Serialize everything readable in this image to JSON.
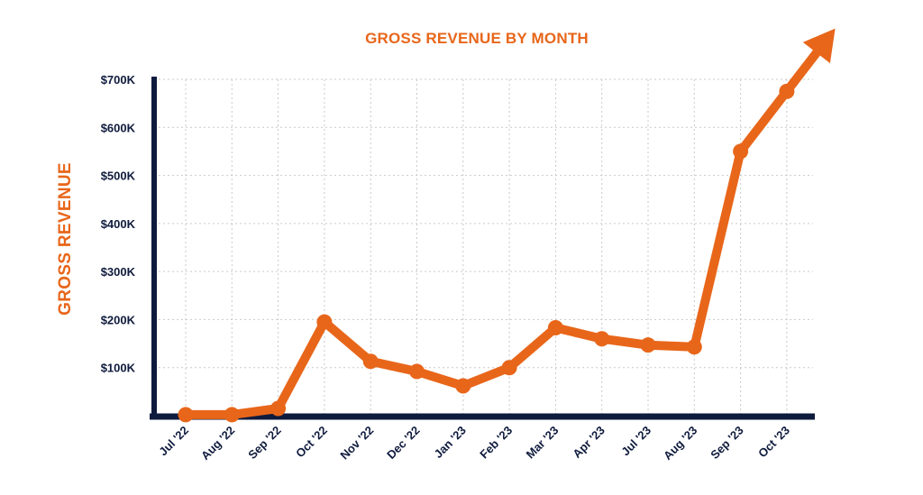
{
  "colors": {
    "accent": "#E8661A",
    "axis": "#0F1B3D",
    "grid": "#C9C9C9",
    "background": "#FFFFFF"
  },
  "chart_data": {
    "type": "line",
    "title": "GROSS REVENUE BY MONTH",
    "xlabel": "",
    "ylabel": "GROSS REVENUE",
    "ylim": [
      0,
      700000
    ],
    "yticks": [
      100000,
      200000,
      300000,
      400000,
      500000,
      600000,
      700000
    ],
    "ytick_labels": [
      "$100K",
      "$200K",
      "$300K",
      "$400K",
      "$500K",
      "$600K",
      "$700K"
    ],
    "grid": true,
    "categories": [
      "Jul '22",
      "Aug '22",
      "Sep '22",
      "Oct '22",
      "Nov '22",
      "Dec '22",
      "Jan '23",
      "Feb '23",
      "Mar '23",
      "Apr '23",
      "Jul '23",
      "Aug '23",
      "Sep '23",
      "Oct '23"
    ],
    "series": [
      {
        "name": "Gross Revenue",
        "values": [
          2000,
          2000,
          15000,
          195000,
          113000,
          92000,
          62000,
          100000,
          183000,
          160000,
          147000,
          143000,
          550000,
          675000
        ]
      }
    ],
    "annotations": [
      "upward trend arrow after Oct '23"
    ]
  }
}
